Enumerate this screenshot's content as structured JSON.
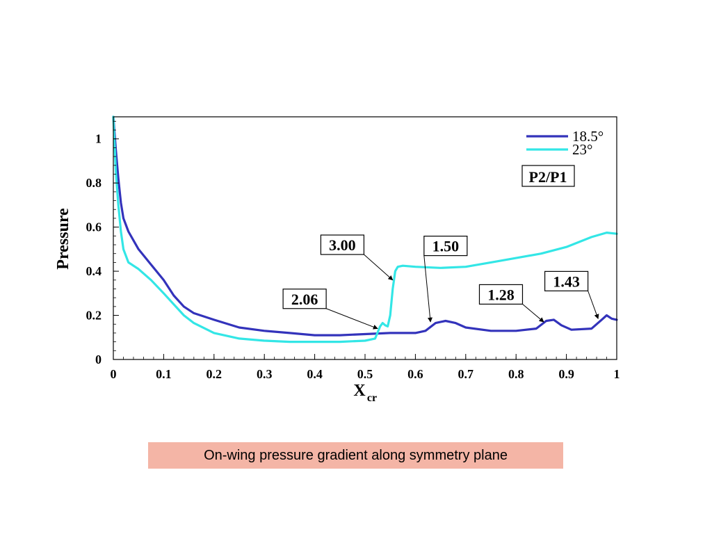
{
  "caption": "On-wing pressure gradient along symmetry plane",
  "chart_data": {
    "type": "line",
    "title": "",
    "xlabel": "X",
    "xlabel_sub": "cr",
    "ylabel": "Pressure",
    "xlim": [
      0,
      1
    ],
    "ylim": [
      0,
      1.1
    ],
    "x_ticks": [
      "0",
      "0.1",
      "0.2",
      "0.3",
      "0.4",
      "0.5",
      "0.6",
      "0.7",
      "0.8",
      "0.9",
      "1"
    ],
    "y_ticks": [
      "0",
      "0.2",
      "0.4",
      "0.6",
      "0.8",
      "1"
    ],
    "legend_position": "top-right",
    "series": [
      {
        "name": "18.5°",
        "color": "#3333bb",
        "points": [
          [
            0.0,
            1.1
          ],
          [
            0.005,
            0.95
          ],
          [
            0.01,
            0.82
          ],
          [
            0.015,
            0.71
          ],
          [
            0.02,
            0.64
          ],
          [
            0.03,
            0.58
          ],
          [
            0.05,
            0.5
          ],
          [
            0.075,
            0.43
          ],
          [
            0.1,
            0.36
          ],
          [
            0.12,
            0.29
          ],
          [
            0.14,
            0.24
          ],
          [
            0.16,
            0.21
          ],
          [
            0.2,
            0.18
          ],
          [
            0.25,
            0.145
          ],
          [
            0.3,
            0.13
          ],
          [
            0.35,
            0.12
          ],
          [
            0.4,
            0.11
          ],
          [
            0.45,
            0.11
          ],
          [
            0.5,
            0.115
          ],
          [
            0.55,
            0.12
          ],
          [
            0.6,
            0.12
          ],
          [
            0.62,
            0.13
          ],
          [
            0.64,
            0.165
          ],
          [
            0.66,
            0.175
          ],
          [
            0.68,
            0.165
          ],
          [
            0.7,
            0.145
          ],
          [
            0.75,
            0.13
          ],
          [
            0.8,
            0.13
          ],
          [
            0.84,
            0.14
          ],
          [
            0.86,
            0.175
          ],
          [
            0.875,
            0.18
          ],
          [
            0.89,
            0.155
          ],
          [
            0.91,
            0.135
          ],
          [
            0.95,
            0.14
          ],
          [
            0.97,
            0.18
          ],
          [
            0.98,
            0.2
          ],
          [
            0.99,
            0.185
          ],
          [
            1.0,
            0.18
          ]
        ]
      },
      {
        "name": "23°",
        "color": "#33e6e6",
        "points": [
          [
            0.0,
            1.1
          ],
          [
            0.005,
            0.85
          ],
          [
            0.01,
            0.7
          ],
          [
            0.015,
            0.58
          ],
          [
            0.02,
            0.5
          ],
          [
            0.03,
            0.44
          ],
          [
            0.05,
            0.41
          ],
          [
            0.075,
            0.36
          ],
          [
            0.1,
            0.3
          ],
          [
            0.12,
            0.25
          ],
          [
            0.14,
            0.2
          ],
          [
            0.16,
            0.165
          ],
          [
            0.2,
            0.12
          ],
          [
            0.25,
            0.095
          ],
          [
            0.3,
            0.085
          ],
          [
            0.35,
            0.08
          ],
          [
            0.4,
            0.08
          ],
          [
            0.45,
            0.08
          ],
          [
            0.5,
            0.085
          ],
          [
            0.52,
            0.095
          ],
          [
            0.53,
            0.15
          ],
          [
            0.535,
            0.165
          ],
          [
            0.54,
            0.155
          ],
          [
            0.545,
            0.15
          ],
          [
            0.55,
            0.2
          ],
          [
            0.555,
            0.32
          ],
          [
            0.56,
            0.4
          ],
          [
            0.565,
            0.42
          ],
          [
            0.575,
            0.425
          ],
          [
            0.6,
            0.42
          ],
          [
            0.65,
            0.415
          ],
          [
            0.7,
            0.42
          ],
          [
            0.75,
            0.44
          ],
          [
            0.8,
            0.46
          ],
          [
            0.85,
            0.48
          ],
          [
            0.9,
            0.51
          ],
          [
            0.95,
            0.555
          ],
          [
            0.98,
            0.575
          ],
          [
            1.0,
            0.57
          ]
        ]
      }
    ],
    "legend_box_label": "P2/P1",
    "annotations": [
      {
        "label": "3.00",
        "box_x": 0.455,
        "box_y": 0.52,
        "target_x": 0.555,
        "target_y": 0.36
      },
      {
        "label": "1.50",
        "box_x": 0.66,
        "box_y": 0.515,
        "target_x": 0.63,
        "target_y": 0.17
      },
      {
        "label": "2.06",
        "box_x": 0.38,
        "box_y": 0.275,
        "target_x": 0.525,
        "target_y": 0.14
      },
      {
        "label": "1.28",
        "box_x": 0.77,
        "box_y": 0.295,
        "target_x": 0.855,
        "target_y": 0.17
      },
      {
        "label": "1.43",
        "box_x": 0.9,
        "box_y": 0.355,
        "target_x": 0.963,
        "target_y": 0.185
      }
    ]
  }
}
